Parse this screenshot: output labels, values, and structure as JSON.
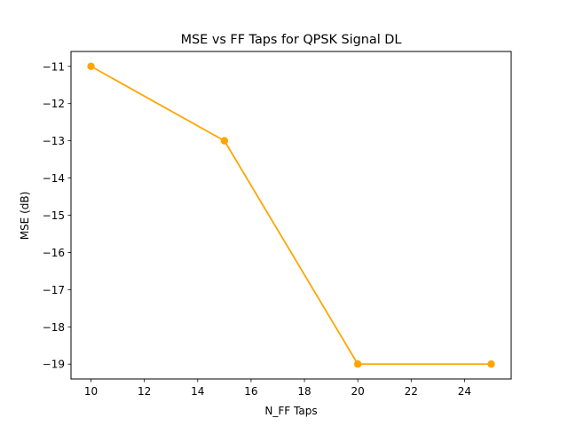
{
  "chart_data": {
    "type": "line",
    "title": "MSE vs FF Taps for QPSK Signal DL",
    "xlabel": "N_FF Taps",
    "ylabel": "MSE (dB)",
    "x": [
      10,
      15,
      20,
      25
    ],
    "series": [
      {
        "values": [
          -11,
          -13,
          -19,
          -19
        ],
        "color": "#ffa500",
        "marker": "circle"
      }
    ],
    "xlim": [
      9.25,
      25.75
    ],
    "ylim": [
      -19.4,
      -10.6
    ],
    "xticks": [
      10,
      12,
      14,
      16,
      18,
      20,
      22,
      24
    ],
    "yticks": [
      -11,
      -12,
      -13,
      -14,
      -15,
      -16,
      -17,
      -18,
      -19
    ],
    "xtick_labels": [
      "10",
      "12",
      "14",
      "16",
      "18",
      "20",
      "22",
      "24"
    ],
    "ytick_labels": [
      "−11",
      "−12",
      "−13",
      "−14",
      "−15",
      "−16",
      "−17",
      "−18",
      "−19"
    ],
    "grid": false,
    "legend": false
  }
}
